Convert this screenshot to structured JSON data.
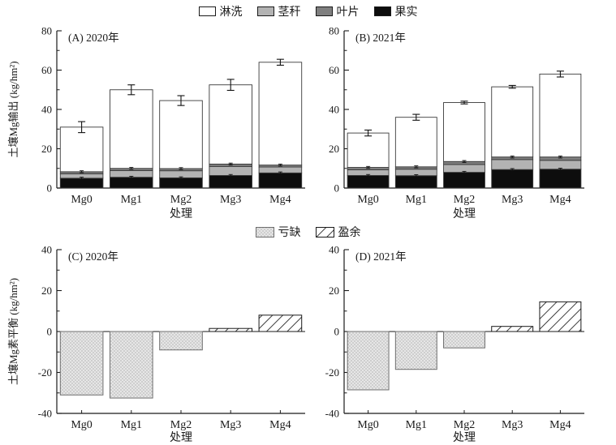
{
  "legend_top": {
    "items": [
      {
        "label": "淋洗",
        "color": "#ffffff"
      },
      {
        "label": "茎秆",
        "color": "#b3b3b3"
      },
      {
        "label": "叶片",
        "color": "#7f7f7f"
      },
      {
        "label": "果实",
        "color": "#0d0d0d"
      }
    ]
  },
  "legend_bottom": {
    "items": [
      {
        "label": "亏缺",
        "pattern": "dots"
      },
      {
        "label": "盈余",
        "pattern": "hatch"
      }
    ]
  },
  "chart_data": [
    {
      "id": "A",
      "type": "bar",
      "stacked": true,
      "title": "(A) 2020年",
      "xlabel": "处理",
      "ylabel": "土壤Mg输出 (kg/hm²)",
      "ylim": [
        0,
        80
      ],
      "yticks": [
        0,
        20,
        40,
        60,
        80
      ],
      "minor_tick_step": 10,
      "categories": [
        "Mg0",
        "Mg1",
        "Mg2",
        "Mg3",
        "Mg4"
      ],
      "series": [
        {
          "name": "果实",
          "color": "#0d0d0d",
          "values": [
            5.0,
            5.5,
            5.2,
            6.4,
            7.7
          ]
        },
        {
          "name": "茎秆",
          "color": "#b3b3b3",
          "values": [
            2.2,
            3.4,
            3.6,
            4.6,
            3.0
          ]
        },
        {
          "name": "叶片",
          "color": "#7f7f7f",
          "values": [
            1.1,
            1.1,
            1.1,
            1.2,
            1.0
          ]
        },
        {
          "name": "淋洗",
          "color": "#ffffff",
          "values": [
            22.7,
            40.0,
            34.6,
            40.3,
            52.3
          ]
        }
      ],
      "totals": [
        31.0,
        50.0,
        44.5,
        52.5,
        64.0
      ],
      "error": [
        2.8,
        2.5,
        2.5,
        2.8,
        1.5
      ],
      "segment_error": 0.5
    },
    {
      "id": "B",
      "type": "bar",
      "stacked": true,
      "title": "(B) 2021年",
      "xlabel": "处理",
      "ylabel": "",
      "ylim": [
        0,
        80
      ],
      "yticks": [
        0,
        20,
        40,
        60,
        80
      ],
      "minor_tick_step": 10,
      "categories": [
        "Mg0",
        "Mg1",
        "Mg2",
        "Mg3",
        "Mg4"
      ],
      "series": [
        {
          "name": "果实",
          "color": "#0d0d0d",
          "values": [
            6.4,
            6.3,
            8.0,
            9.4,
            9.6
          ]
        },
        {
          "name": "茎秆",
          "color": "#b3b3b3",
          "values": [
            2.9,
            3.3,
            4.0,
            5.1,
            4.5
          ]
        },
        {
          "name": "叶片",
          "color": "#7f7f7f",
          "values": [
            1.2,
            1.2,
            1.5,
            1.3,
            1.7
          ]
        },
        {
          "name": "淋洗",
          "color": "#ffffff",
          "values": [
            17.5,
            25.2,
            30.0,
            35.7,
            42.2
          ]
        }
      ],
      "totals": [
        28.0,
        36.0,
        43.5,
        51.5,
        58.0
      ],
      "error": [
        1.5,
        1.5,
        0.7,
        0.7,
        1.5
      ],
      "segment_error": 0.5
    },
    {
      "id": "C",
      "type": "bar",
      "stacked": false,
      "title": "(C) 2020年",
      "xlabel": "处理",
      "ylabel": "土壤Mg素平衡 (kg/hm²)",
      "ylim": [
        -40,
        40
      ],
      "yticks": [
        -40,
        -20,
        0,
        20,
        40
      ],
      "minor_tick_step": 10,
      "categories": [
        "Mg0",
        "Mg1",
        "Mg2",
        "Mg3",
        "Mg4"
      ],
      "values": [
        -31.0,
        -32.5,
        -9.0,
        1.5,
        8.0
      ],
      "negative_style": "dots",
      "positive_style": "hatch"
    },
    {
      "id": "D",
      "type": "bar",
      "stacked": false,
      "title": "(D) 2021年",
      "xlabel": "处理",
      "ylabel": "",
      "ylim": [
        -40,
        40
      ],
      "yticks": [
        -40,
        -20,
        0,
        20,
        40
      ],
      "minor_tick_step": 10,
      "categories": [
        "Mg0",
        "Mg1",
        "Mg2",
        "Mg3",
        "Mg4"
      ],
      "values": [
        -28.5,
        -18.5,
        -8.0,
        2.5,
        14.5
      ],
      "negative_style": "dots",
      "positive_style": "hatch"
    }
  ]
}
